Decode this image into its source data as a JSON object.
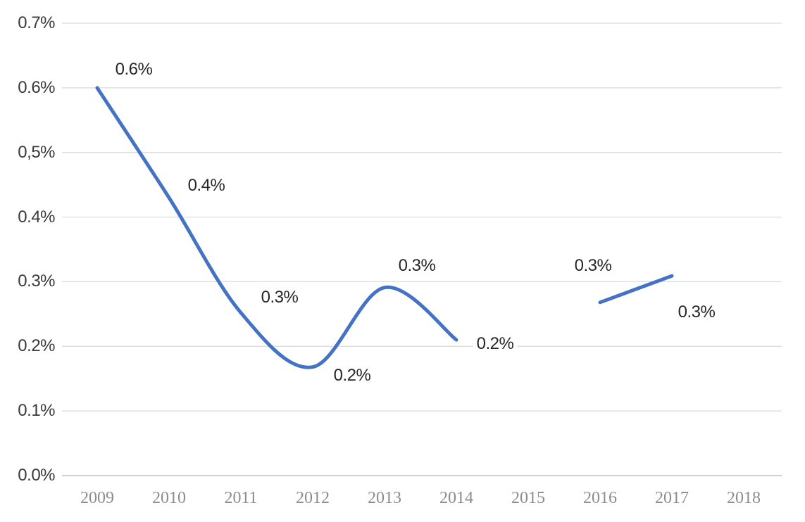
{
  "chart_data": {
    "type": "line",
    "title": "",
    "xlabel": "",
    "ylabel": "",
    "x_categories": [
      "2009",
      "2010",
      "2011",
      "2012",
      "2013",
      "2014",
      "2015",
      "2016",
      "2017",
      "2018"
    ],
    "y_axis": {
      "tick_labels": [
        "0.7%",
        "0.6%",
        "0,5%",
        "0.4%",
        "0.3%",
        "0.2%",
        "0.1%",
        "0.0%"
      ],
      "min": 0,
      "max": 0.7,
      "step": 0.1,
      "unit": "%"
    },
    "grid": true,
    "legend": false,
    "smoothed": true,
    "missing_years": [
      "2015",
      "2018"
    ],
    "series": [
      {
        "name": "segment-1",
        "points": [
          {
            "year": "2009",
            "label": "0.6%",
            "value": 0.6,
            "curve_value": 0.6,
            "label_offset": {
              "dx": 52,
              "dy": -26
            }
          },
          {
            "year": "2010",
            "label": "0.4%",
            "value": 0.4,
            "curve_value": 0.43,
            "label_offset": {
              "dx": 53,
              "dy": -17
            }
          },
          {
            "year": "2011",
            "label": "0.3%",
            "value": 0.3,
            "curve_value": 0.252,
            "label_offset": {
              "dx": 55,
              "dy": -22
            }
          },
          {
            "year": "2012",
            "label": "0.2%",
            "value": 0.2,
            "curve_value": 0.168,
            "label_offset": {
              "dx": 56,
              "dy": 12
            }
          },
          {
            "year": "2013",
            "label": "0.3%",
            "value": 0.3,
            "curve_value": 0.291,
            "label_offset": {
              "dx": 46,
              "dy": -31
            }
          },
          {
            "year": "2014",
            "label": "0.2%",
            "value": 0.2,
            "curve_value": 0.21,
            "label_offset": {
              "dx": 55,
              "dy": 6
            }
          }
        ]
      },
      {
        "name": "segment-2",
        "points": [
          {
            "year": "2016",
            "label": "0.3%",
            "value": 0.3,
            "curve_value": 0.268,
            "label_offset": {
              "dx": -10,
              "dy": -52
            }
          },
          {
            "year": "2017",
            "label": "0.3%",
            "value": 0.3,
            "curve_value": 0.309,
            "label_offset": {
              "dx": 35,
              "dy": 52
            }
          }
        ]
      }
    ],
    "colors": {
      "line": "#4472C4",
      "gridline": "#d9d9d9",
      "axis_line": "#bfbfbf",
      "y_label": "#3a3a3a",
      "x_label": "#8c8c8c",
      "data_label": "#262626",
      "background": "#ffffff"
    }
  }
}
